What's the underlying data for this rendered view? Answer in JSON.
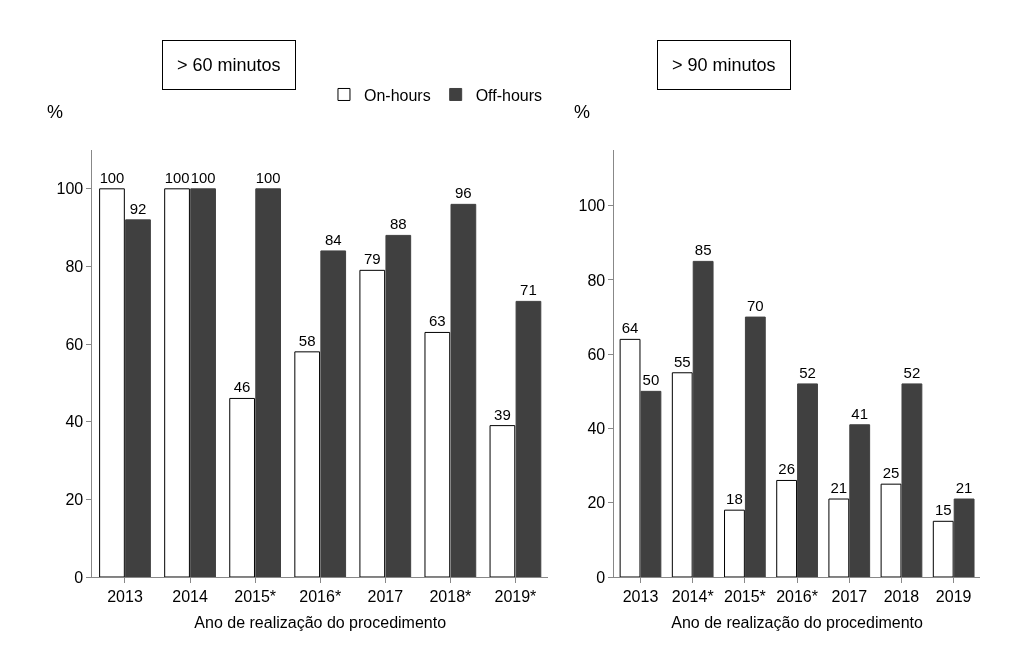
{
  "chart_data": [
    {
      "type": "bar",
      "title": "> 60 minutos",
      "ylabel": "%",
      "xlabel": "Ano de realização do procedimento",
      "categories": [
        "2013",
        "2014",
        "2015*",
        "2016*",
        "2017",
        "2018*",
        "2019*"
      ],
      "series": [
        {
          "name": "On-hours",
          "color": "#ffffff",
          "values": [
            100,
            100,
            46,
            58,
            79,
            63,
            39
          ]
        },
        {
          "name": "Off-hours",
          "color": "#404040",
          "values": [
            92,
            100,
            100,
            84,
            88,
            96,
            71
          ]
        }
      ],
      "ylim": [
        0,
        110
      ],
      "yticks": [
        0,
        20,
        40,
        60,
        80,
        100
      ],
      "data_labels": true,
      "legend": "top right"
    },
    {
      "type": "bar",
      "title": "> 90 minutos",
      "ylabel": "%",
      "xlabel": "Ano de realização do procedimento",
      "categories": [
        "2013",
        "2014*",
        "2015*",
        "2016*",
        "2017",
        "2018",
        "2019"
      ],
      "series": [
        {
          "color": "#ffffff",
          "values": [
            64,
            55,
            18,
            26,
            21,
            25,
            15
          ]
        },
        {
          "color": "#404040",
          "values": [
            50,
            85,
            70,
            52,
            41,
            52,
            21
          ]
        }
      ],
      "ylim": [
        0,
        115
      ],
      "yticks": [
        0,
        20,
        40,
        60,
        80,
        100
      ],
      "data_labels": true
    }
  ]
}
